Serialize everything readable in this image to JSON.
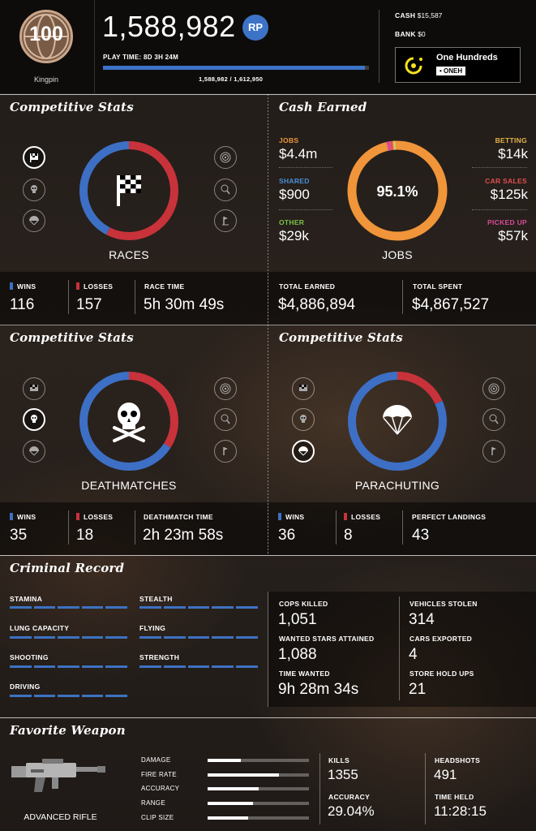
{
  "header": {
    "rank": "100",
    "rank_title": "Kingpin",
    "rp_value": "1,588,982",
    "rp_badge": "RP",
    "play_time": "PLAY TIME: 8D 3H 24M",
    "rp_progress_text": "1,588,982 / 1,612,950",
    "rp_progress": 0.985,
    "cash_label": "CASH",
    "cash_value": "$15,587",
    "bank_label": "BANK",
    "bank_value": "$0",
    "crew_name": "One Hundreds",
    "crew_tag": "• ONEH"
  },
  "races": {
    "title": "Competitive Stats",
    "ring_label": "RACES",
    "wins_label": "WINS",
    "wins": "116",
    "losses_label": "LOSSES",
    "losses": "157",
    "time_label": "RACE TIME",
    "time": "5h 30m 49s"
  },
  "cash": {
    "title": "Cash Earned",
    "jobs_label": "JOBS",
    "jobs": "$4.4m",
    "shared_label": "SHARED",
    "shared": "$900",
    "other_label": "OTHER",
    "other": "$29k",
    "betting_label": "BETTING",
    "betting": "$14k",
    "car_sales_label": "CAR SALES",
    "car_sales": "$125k",
    "picked_up_label": "PICKED UP",
    "picked_up": "$57k",
    "ring_percent": "95.1%",
    "ring_label": "JOBS",
    "total_earned_label": "TOTAL EARNED",
    "total_earned": "$4,886,894",
    "total_spent_label": "TOTAL SPENT",
    "total_spent": "$4,867,527"
  },
  "deathmatches": {
    "title": "Competitive Stats",
    "ring_label": "DEATHMATCHES",
    "wins_label": "WINS",
    "wins": "35",
    "losses_label": "LOSSES",
    "losses": "18",
    "time_label": "DEATHMATCH TIME",
    "time": "2h 23m 58s"
  },
  "parachuting": {
    "title": "Competitive Stats",
    "ring_label": "PARACHUTING",
    "wins_label": "WINS",
    "wins": "36",
    "losses_label": "LOSSES",
    "losses": "8",
    "landings_label": "PERFECT LANDINGS",
    "landings": "43"
  },
  "criminal": {
    "title": "Criminal Record",
    "skills": {
      "stamina": "STAMINA",
      "stealth": "STEALTH",
      "lung": "LUNG CAPACITY",
      "flying": "FLYING",
      "shooting": "SHOOTING",
      "strength": "STRENGTH",
      "driving": "DRIVING"
    },
    "cops_killed_label": "COPS KILLED",
    "cops_killed": "1,051",
    "wanted_label": "WANTED STARS ATTAINED",
    "wanted": "1,088",
    "time_wanted_label": "TIME WANTED",
    "time_wanted": "9h 28m 34s",
    "vehicles_label": "VEHICLES STOLEN",
    "vehicles": "314",
    "cars_exported_label": "CARS EXPORTED",
    "cars_exported": "4",
    "holdups_label": "STORE HOLD UPS",
    "holdups": "21"
  },
  "weapon": {
    "title": "Favorite Weapon",
    "name": "ADVANCED RIFLE",
    "damage_label": "DAMAGE",
    "fire_rate_label": "FIRE RATE",
    "accuracy_bar_label": "ACCURACY",
    "range_label": "RANGE",
    "clip_label": "CLIP SIZE",
    "kills_label": "KILLS",
    "kills": "1355",
    "accuracy_label": "ACCURACY",
    "accuracy": "29.04%",
    "headshots_label": "HEADSHOTS",
    "headshots": "491",
    "time_held_label": "TIME HELD",
    "time_held": "11:28:15"
  },
  "colors": {
    "win_blue": "#3d6fc4",
    "loss_red": "#c8323a",
    "jobs_orange": "#f0953a",
    "betting_yellow": "#e6b54a",
    "car_sales_red": "#e05050",
    "picked_up_pink": "#d94a9a",
    "shared_blue": "#4a90d9",
    "other_green": "#7cc24a"
  }
}
